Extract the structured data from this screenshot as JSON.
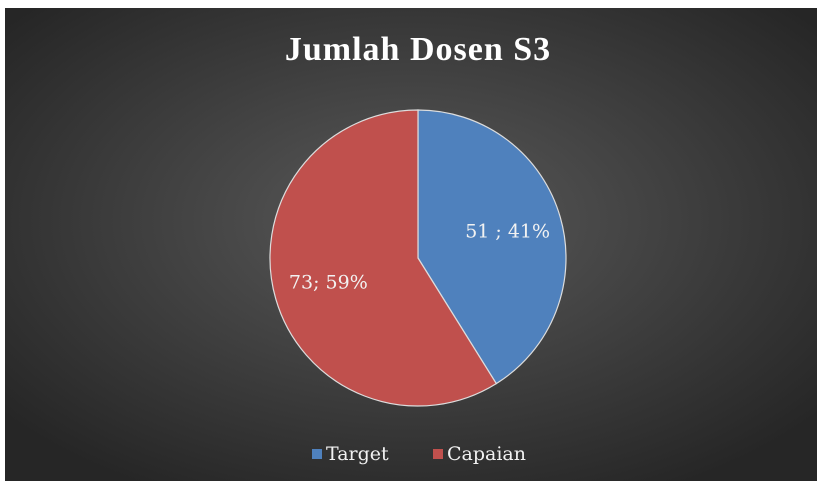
{
  "chart_data": {
    "type": "pie",
    "title": "Jumlah Dosen S3",
    "categories": [
      "Target",
      "Capaian"
    ],
    "values": [
      51,
      73
    ],
    "value_labels": [
      "51 ; 41%",
      "73; 59%"
    ],
    "colors": [
      "#4f81bd",
      "#c0504d"
    ],
    "legend": "bottom"
  }
}
